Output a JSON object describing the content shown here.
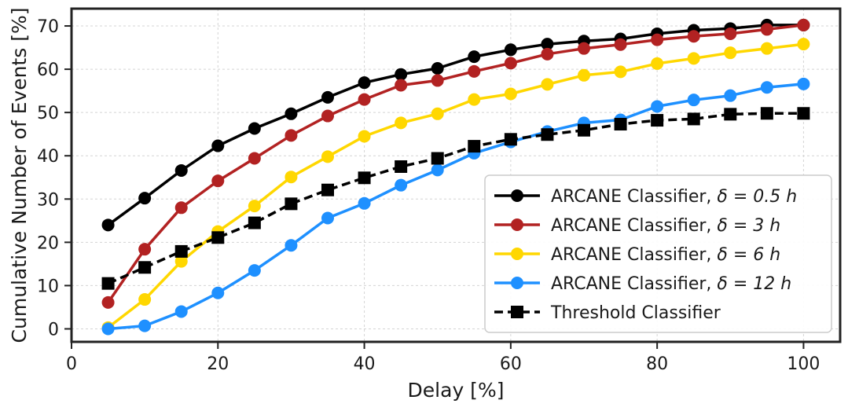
{
  "chart_data": {
    "type": "line",
    "title": "",
    "xlabel": "Delay [%]",
    "ylabel": "Cumulative Number of Events [%]",
    "xlim": [
      0,
      105
    ],
    "ylim": [
      -3,
      74
    ],
    "xticks": [
      0,
      20,
      40,
      60,
      80,
      100
    ],
    "yticks": [
      0,
      10,
      20,
      30,
      40,
      50,
      60,
      70
    ],
    "grid": true,
    "legend_position": "lower-right",
    "x": [
      5,
      10,
      15,
      20,
      25,
      30,
      35,
      40,
      45,
      50,
      55,
      60,
      65,
      70,
      75,
      80,
      85,
      90,
      95,
      100
    ],
    "series": [
      {
        "name": "ARCANE Classifier, δ = 0.5 h",
        "legend_prefix": "ARCANE Classifier, ",
        "legend_math": "δ = 0.5 h",
        "color": "#000000",
        "marker": "circle",
        "linestyle": "solid",
        "values": [
          24,
          30.2,
          36.6,
          42.3,
          46.3,
          49.7,
          53.5,
          56.9,
          58.8,
          60.2,
          62.9,
          64.5,
          65.8,
          66.5,
          67.0,
          68.2,
          69.0,
          69.4,
          70.2,
          70.2
        ]
      },
      {
        "name": "ARCANE Classifier, δ = 3 h",
        "legend_prefix": "ARCANE Classifier, ",
        "legend_math": "δ = 3 h",
        "color": "#b22222",
        "marker": "circle",
        "linestyle": "solid",
        "values": [
          6.1,
          18.4,
          28.0,
          34.2,
          39.4,
          44.7,
          49.2,
          53.0,
          56.3,
          57.4,
          59.5,
          61.4,
          63.5,
          64.8,
          65.7,
          66.8,
          67.6,
          68.2,
          69.2,
          70.2
        ]
      },
      {
        "name": "ARCANE Classifier, δ = 6 h",
        "legend_prefix": "ARCANE Classifier, ",
        "legend_math": "δ = 6 h",
        "color": "#ffd700",
        "marker": "circle",
        "linestyle": "solid",
        "values": [
          0.3,
          6.8,
          15.6,
          22.5,
          28.4,
          35.1,
          39.8,
          44.5,
          47.6,
          49.7,
          53.0,
          54.3,
          56.5,
          58.6,
          59.4,
          61.3,
          62.5,
          63.8,
          64.8,
          65.8
        ]
      },
      {
        "name": "ARCANE Classifier, δ = 12 h",
        "legend_prefix": "ARCANE Classifier, ",
        "legend_math": "δ = 12 h",
        "color": "#1e90ff",
        "marker": "circle",
        "linestyle": "solid",
        "values": [
          0.0,
          0.7,
          4.0,
          8.3,
          13.5,
          19.3,
          25.6,
          29.0,
          33.2,
          36.7,
          40.6,
          43.2,
          45.6,
          47.6,
          48.3,
          51.4,
          52.9,
          53.9,
          55.8,
          56.6
        ]
      },
      {
        "name": "Threshold Classifier",
        "legend_prefix": "Threshold Classifier",
        "legend_math": "",
        "color": "#000000",
        "marker": "square",
        "linestyle": "dashed",
        "values": [
          10.5,
          14.2,
          17.9,
          21.1,
          24.5,
          28.9,
          32.1,
          34.9,
          37.5,
          39.4,
          42.2,
          43.8,
          44.9,
          45.9,
          47.3,
          48.2,
          48.5,
          49.6,
          49.8,
          49.8
        ]
      }
    ]
  }
}
